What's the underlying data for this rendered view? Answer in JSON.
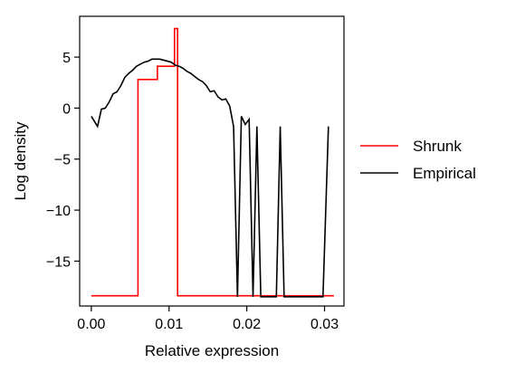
{
  "chart_data": {
    "type": "line",
    "xlabel": "Relative expression",
    "ylabel": "Log density",
    "xlim": [
      -0.0015,
      0.0325
    ],
    "ylim": [
      -19.4,
      9.0
    ],
    "x_ticks": [
      0.0,
      0.01,
      0.02,
      0.03
    ],
    "x_tick_labels": [
      "0.00",
      "0.01",
      "0.02",
      "0.03"
    ],
    "y_ticks": [
      5,
      0,
      -5,
      -10,
      -15
    ],
    "y_tick_labels": [
      "5",
      "0",
      "−5",
      "−10",
      "−15"
    ],
    "grid": false,
    "legend_position": "right",
    "series": [
      {
        "name": "Shrunk",
        "color": "#ff0000",
        "x": [
          0.0,
          0.006,
          0.006,
          0.0085,
          0.0085,
          0.0107,
          0.0107,
          0.0111,
          0.0111,
          0.0312
        ],
        "y": [
          -18.4,
          -18.4,
          2.8,
          2.8,
          4.1,
          4.1,
          7.8,
          7.8,
          -18.4,
          -18.4
        ]
      },
      {
        "name": "Empirical",
        "color": "#000000",
        "x": [
          0.0,
          0.0008,
          0.0013,
          0.0018,
          0.0023,
          0.0028,
          0.0033,
          0.0038,
          0.0043,
          0.0048,
          0.0053,
          0.0058,
          0.0063,
          0.0068,
          0.0073,
          0.0078,
          0.0083,
          0.0088,
          0.0093,
          0.0098,
          0.0103,
          0.0108,
          0.0113,
          0.0118,
          0.0123,
          0.0128,
          0.0133,
          0.0138,
          0.0143,
          0.0148,
          0.0153,
          0.0158,
          0.0163,
          0.0168,
          0.0173,
          0.0178,
          0.0183,
          0.0188,
          0.0193,
          0.0198,
          0.0203,
          0.0208,
          0.0213,
          0.0218,
          0.0223,
          0.0228,
          0.0233,
          0.0238,
          0.0243,
          0.0248,
          0.0253,
          0.0258,
          0.0263,
          0.0268,
          0.0273,
          0.0278,
          0.0283,
          0.0288,
          0.0293,
          0.0298,
          0.0305
        ],
        "y": [
          -0.8,
          -1.8,
          -0.1,
          0.0,
          0.6,
          1.4,
          1.6,
          2.2,
          3.0,
          3.4,
          3.7,
          4.1,
          4.3,
          4.5,
          4.6,
          4.8,
          4.8,
          4.8,
          4.7,
          4.6,
          4.5,
          4.2,
          4.1,
          3.9,
          3.6,
          3.4,
          3.1,
          2.8,
          2.6,
          2.2,
          1.6,
          1.7,
          1.1,
          0.8,
          0.9,
          0.2,
          -1.8,
          -18.5,
          -0.8,
          -1.6,
          -1.1,
          -18.5,
          -1.8,
          -18.5,
          -18.5,
          -18.5,
          -18.5,
          -18.5,
          -1.8,
          -18.5,
          -18.5,
          -18.5,
          -18.5,
          -18.5,
          -18.5,
          -18.5,
          -18.5,
          -18.5,
          -18.5,
          -18.5,
          -1.8
        ]
      }
    ]
  }
}
